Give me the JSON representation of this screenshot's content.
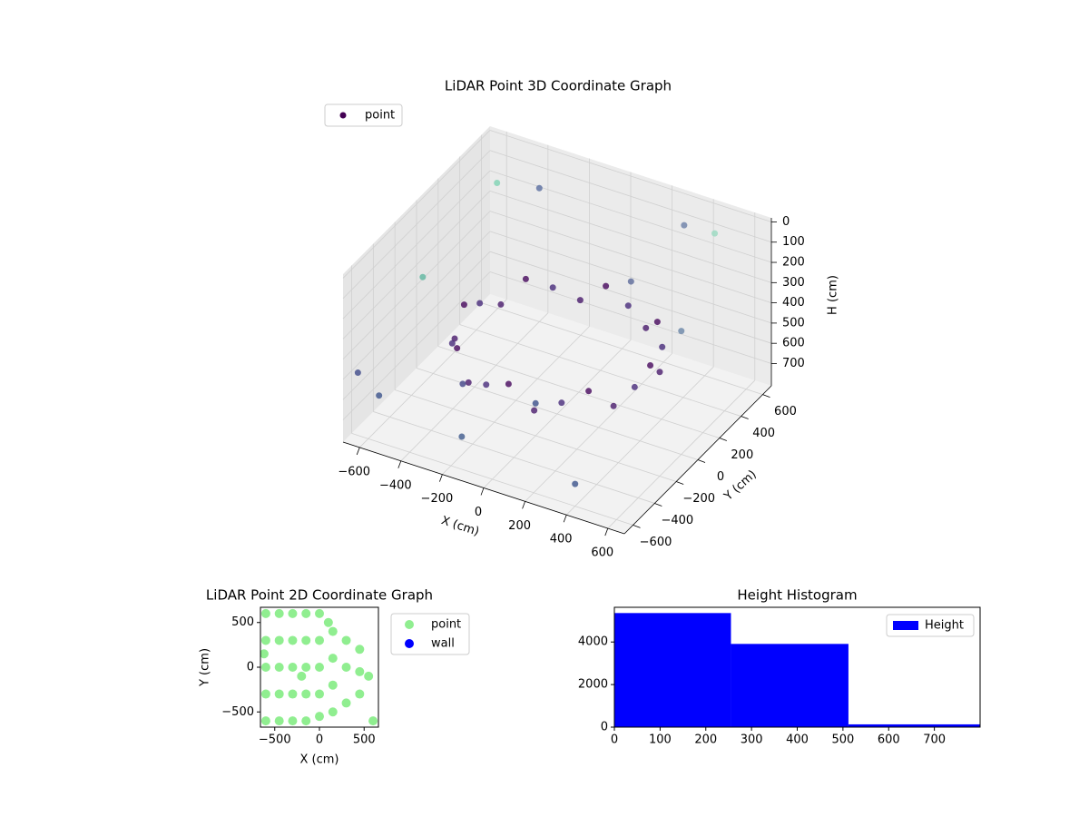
{
  "chart_data": [
    {
      "type": "scatter3d",
      "title": "LiDAR Point 3D Coordinate Graph",
      "x_label": "X (cm)",
      "y_label": "Y (cm)",
      "z_label": "H (cm)",
      "xlim": [
        -680,
        680
      ],
      "ylim": [
        -680,
        680
      ],
      "zlim": [
        810,
        -20
      ],
      "xticks": [
        {
          "value": -600,
          "label": "−600"
        },
        {
          "value": -400,
          "label": "−400"
        },
        {
          "value": -200,
          "label": "−200"
        },
        0,
        200,
        400,
        600
      ],
      "yticks": [
        {
          "value": -600,
          "label": "−600"
        },
        {
          "value": -400,
          "label": "−400"
        },
        {
          "value": -200,
          "label": "−200"
        },
        0,
        200,
        400,
        600
      ],
      "zticks": [
        0,
        100,
        200,
        300,
        400,
        500,
        600,
        700
      ],
      "grid": true,
      "legend": "upper left",
      "series": [
        {
          "name": "point",
          "color": "#440154",
          "x": [
            450,
            435,
            390,
            318,
            225,
            116,
            0,
            -116,
            -225,
            -318,
            -390,
            -435,
            -450,
            -435,
            -390,
            -318,
            -225,
            -116,
            0,
            116,
            225,
            318,
            390,
            435,
            -650,
            -600,
            -500,
            500,
            300,
            -400,
            0,
            -200,
            600,
            -650,
            200,
            -300,
            400
          ],
          "y": [
            0,
            116,
            225,
            318,
            390,
            435,
            450,
            435,
            390,
            318,
            225,
            116,
            0,
            -116,
            -225,
            -318,
            -390,
            -435,
            -450,
            -435,
            -390,
            -318,
            -225,
            -116,
            -600,
            -500,
            400,
            500,
            600,
            600,
            -200,
            -500,
            0,
            0,
            300,
            -300,
            -600
          ],
          "h": [
            420,
            520,
            470,
            420,
            520,
            470,
            420,
            520,
            470,
            420,
            520,
            470,
            420,
            520,
            470,
            420,
            520,
            470,
            420,
            520,
            470,
            420,
            520,
            470,
            500,
            650,
            50,
            20,
            100,
            150,
            650,
            720,
            200,
            350,
            250,
            600,
            700
          ],
          "colors": [
            "#46085c",
            "#481a6c",
            "#472a7a",
            "#46085c",
            "#481a6c",
            "#472a7a",
            "#46085c",
            "#481a6c",
            "#472a7a",
            "#46085c",
            "#481a6c",
            "#472a7a",
            "#46085c",
            "#481a6c",
            "#472a7a",
            "#46085c",
            "#481a6c",
            "#472a7a",
            "#46085c",
            "#481a6c",
            "#472a7a",
            "#46085c",
            "#481a6c",
            "#472a7a",
            "#3e4a89",
            "#3b528b",
            "#7fd3b4",
            "#9ad9c0",
            "#6b7fa8",
            "#5a6ea0",
            "#3b4f8a",
            "#3e5a8c",
            "#6a86a8",
            "#5fb7a0",
            "#5d6a9a",
            "#414487",
            "#3b528b"
          ]
        }
      ]
    },
    {
      "type": "scatter",
      "title": "LiDAR Point 2D Coordinate Graph",
      "x_label": "X (cm)",
      "y_label": "Y (cm)",
      "xlim": [
        -660,
        660
      ],
      "ylim": [
        -670,
        670
      ],
      "xticks": [
        {
          "value": -500,
          "label": "−500"
        },
        0,
        500
      ],
      "yticks": [
        {
          "value": -500,
          "label": "−500"
        },
        0,
        500
      ],
      "legend": "outside right",
      "series": [
        {
          "name": "point",
          "color": "#90ee90",
          "x": [
            -600,
            -600,
            -600,
            -600,
            -600,
            -450,
            -450,
            -450,
            -450,
            -450,
            -300,
            -300,
            -300,
            -300,
            -300,
            -150,
            -150,
            -150,
            -150,
            -150,
            0,
            0,
            0,
            0,
            0,
            150,
            150,
            150,
            150,
            300,
            300,
            300,
            450,
            450,
            450,
            550,
            -200,
            100,
            600,
            -620
          ],
          "y": [
            -600,
            -300,
            0,
            300,
            600,
            -600,
            -300,
            0,
            300,
            600,
            -600,
            -300,
            0,
            300,
            600,
            -600,
            -300,
            0,
            300,
            600,
            -550,
            -300,
            0,
            300,
            600,
            -500,
            -200,
            100,
            400,
            -400,
            0,
            300,
            -300,
            -50,
            200,
            -100,
            -100,
            500,
            -600,
            150
          ]
        },
        {
          "name": "wall",
          "color": "#0000ff",
          "x": [],
          "y": []
        }
      ]
    },
    {
      "type": "histogram",
      "title": "Height Histogram",
      "bins": [
        0,
        255,
        512,
        800
      ],
      "xlim": [
        0,
        800
      ],
      "ylim": [
        0,
        5630
      ],
      "xticks": [
        0,
        100,
        200,
        300,
        400,
        500,
        600,
        700
      ],
      "yticks": [
        0,
        2000,
        4000
      ],
      "legend": "upper right",
      "series": [
        {
          "name": "Height",
          "color": "#0000ff",
          "values": [
            5360,
            3910,
            130
          ]
        }
      ]
    }
  ]
}
